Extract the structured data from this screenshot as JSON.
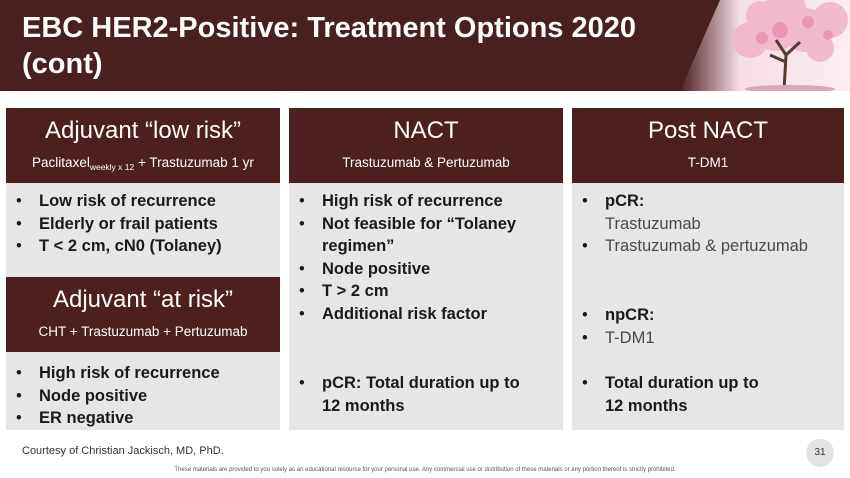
{
  "header": {
    "title_line1": "EBC HER2-Positive: Treatment Options 2020",
    "title_line2": "(cont)"
  },
  "columns": {
    "adjuvant_low": {
      "title": "Adjuvant “low risk”",
      "subtitle_drug": "Paclitaxel",
      "subtitle_sub": "weekly x 12",
      "subtitle_rest": " + Trastuzumab 1 yr",
      "bullets": [
        "Low risk of recurrence",
        "Elderly or frail patients",
        "T < 2 cm, cN0 (Tolaney)"
      ]
    },
    "adjuvant_at_risk": {
      "title": "Adjuvant “at risk”",
      "subtitle": "CHT + Trastuzumab + Pertuzumab",
      "bullets": [
        "High risk of recurrence",
        "Node positive",
        "ER negative"
      ]
    },
    "nact": {
      "title": "NACT",
      "subtitle": "Trastuzumab & Pertuzumab",
      "bullets": [
        "High risk of recurrence",
        "Not feasible for “Tolaney",
        "regimen”",
        "Node positive",
        "T > 2 cm",
        "Additional risk factor"
      ],
      "pcr_line1": "pCR: Total duration up to",
      "pcr_line2": "12 months"
    },
    "post_nact": {
      "title": "Post NACT",
      "subtitle": "T-DM1",
      "pcr_label": "pCR:",
      "pcr_items": [
        "Trastuzumab",
        "Trastuzumab & pertuzumab"
      ],
      "npcr_label": "npCR:",
      "npcr_items": [
        "T-DM1"
      ],
      "total_line1": "Total duration up to",
      "total_line2": "12 months"
    }
  },
  "bullet_glyph": "•",
  "footer": {
    "courtesy": "Courtesy of Christian Jackisch, MD, PhD.",
    "note": "These materials are provided to you solely as an educational resource for your personal use. Any commercial use or distribution of these materials or any portion thereof is strictly prohibited.",
    "page_number": "31"
  },
  "colors": {
    "brand_maroon": "#4e1f1f",
    "panel_gray": "#e6e6e6",
    "blossom_pink": "#f4c6d6"
  },
  "icons": [
    "cherry-blossom-tree-illustration"
  ]
}
